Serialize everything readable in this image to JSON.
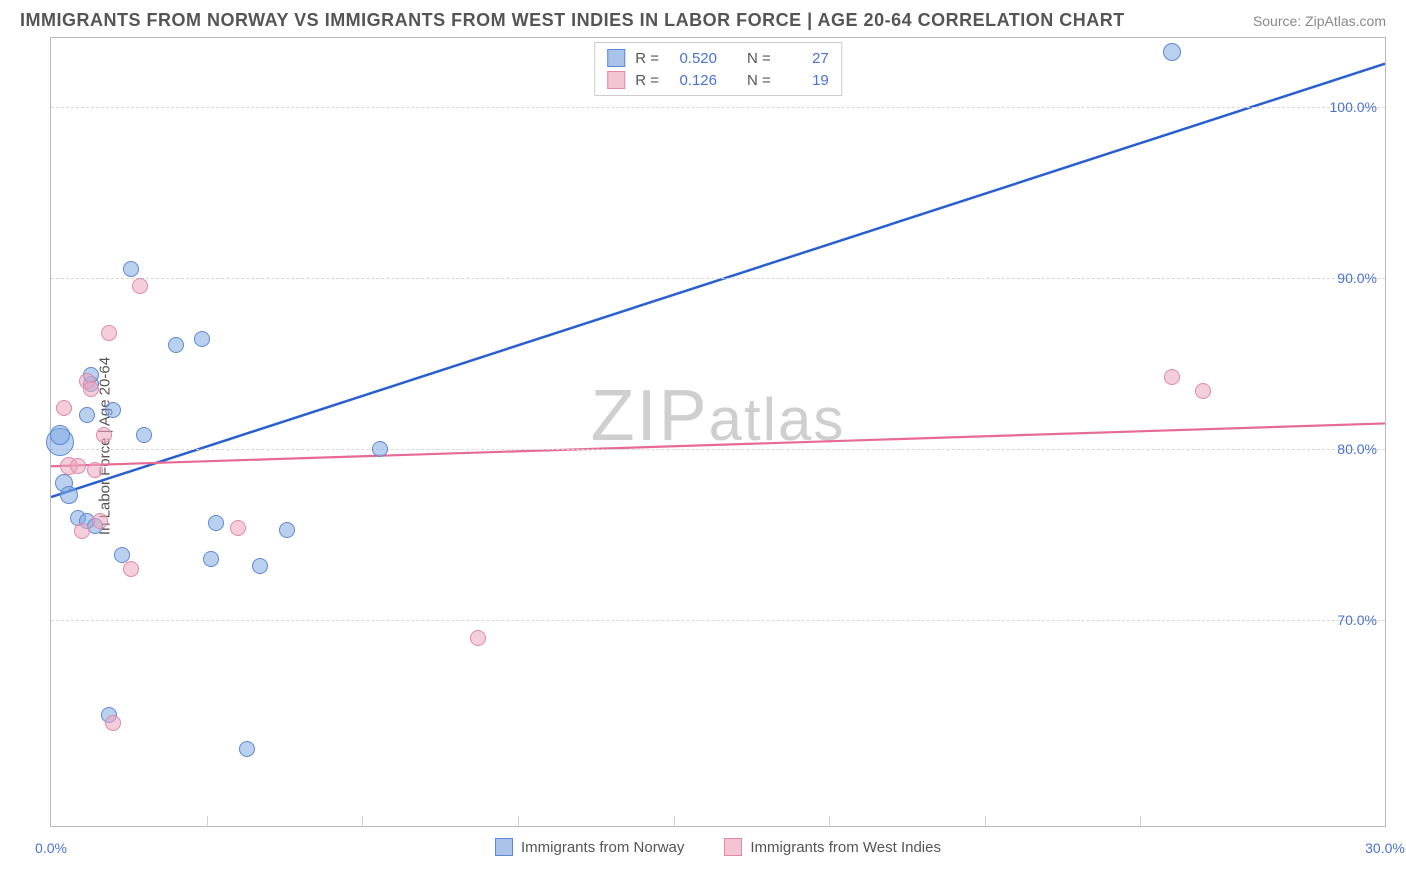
{
  "header": {
    "title": "IMMIGRANTS FROM NORWAY VS IMMIGRANTS FROM WEST INDIES IN LABOR FORCE | AGE 20-64 CORRELATION CHART",
    "source": "Source: ZipAtlas.com"
  },
  "chart": {
    "type": "scatter",
    "ylabel": "In Labor Force | Age 20-64",
    "xlim": [
      0,
      30
    ],
    "ylim": [
      58,
      104
    ],
    "ytick": [
      {
        "v": 70,
        "label": "70.0%"
      },
      {
        "v": 80,
        "label": "80.0%"
      },
      {
        "v": 90,
        "label": "90.0%"
      },
      {
        "v": 100,
        "label": "100.0%"
      }
    ],
    "xtick_minor": [
      3.5,
      7,
      10.5,
      14,
      17.5,
      21,
      24.5
    ],
    "xtick_labels": [
      {
        "v": 0,
        "label": "0.0%"
      },
      {
        "v": 30,
        "label": "30.0%"
      }
    ],
    "grid_color": "#d8d8d8",
    "background_color": "#ffffff",
    "watermark": "ZIPatlas",
    "legend_top": [
      {
        "swatch_fill": "#a9c3ea",
        "swatch_border": "#5d88d6",
        "r_label": "R =",
        "r": "0.520",
        "n_label": "N =",
        "n": "27"
      },
      {
        "swatch_fill": "#f3c4d2",
        "swatch_border": "#e389a6",
        "r_label": "R =",
        "r": "0.126",
        "n_label": "N =",
        "n": "19"
      }
    ],
    "legend_bottom": [
      {
        "swatch_fill": "#a9c3ea",
        "swatch_border": "#5d88d6",
        "label": "Immigrants from Norway"
      },
      {
        "swatch_fill": "#f3c4d2",
        "swatch_border": "#e389a6",
        "label": "Immigrants from West Indies"
      }
    ],
    "series": [
      {
        "name": "Immigrants from Norway",
        "fill": "rgba(130,170,225,0.55)",
        "border": "#5d88d6",
        "marker_radius": 8,
        "trend": {
          "x1": 0,
          "y1": 77.2,
          "x2": 30,
          "y2": 102.5,
          "color": "#2a5fd0",
          "width": 2.5
        },
        "points": [
          {
            "x": 0.2,
            "y": 80.4,
            "r": 14
          },
          {
            "x": 0.2,
            "y": 80.8,
            "r": 10
          },
          {
            "x": 0.3,
            "y": 78.0,
            "r": 9
          },
          {
            "x": 0.4,
            "y": 77.3,
            "r": 9
          },
          {
            "x": 0.6,
            "y": 76.0,
            "r": 8
          },
          {
            "x": 0.8,
            "y": 75.8,
            "r": 8
          },
          {
            "x": 0.8,
            "y": 82.0,
            "r": 8
          },
          {
            "x": 0.9,
            "y": 83.8,
            "r": 8
          },
          {
            "x": 0.9,
            "y": 84.3,
            "r": 8
          },
          {
            "x": 1.0,
            "y": 75.5,
            "r": 8
          },
          {
            "x": 1.3,
            "y": 64.5,
            "r": 8
          },
          {
            "x": 1.4,
            "y": 82.3,
            "r": 8
          },
          {
            "x": 1.6,
            "y": 73.8,
            "r": 8
          },
          {
            "x": 1.8,
            "y": 90.5,
            "r": 8
          },
          {
            "x": 2.1,
            "y": 80.8,
            "r": 8
          },
          {
            "x": 2.8,
            "y": 86.1,
            "r": 8
          },
          {
            "x": 3.4,
            "y": 86.4,
            "r": 8
          },
          {
            "x": 3.6,
            "y": 73.6,
            "r": 8
          },
          {
            "x": 3.7,
            "y": 75.7,
            "r": 8
          },
          {
            "x": 4.4,
            "y": 62.5,
            "r": 8
          },
          {
            "x": 4.7,
            "y": 73.2,
            "r": 8
          },
          {
            "x": 5.3,
            "y": 75.3,
            "r": 8
          },
          {
            "x": 7.4,
            "y": 80.0,
            "r": 8
          },
          {
            "x": 25.2,
            "y": 103.2,
            "r": 9
          }
        ]
      },
      {
        "name": "Immigrants from West Indies",
        "fill": "rgba(235,165,190,0.55)",
        "border": "#e389a6",
        "marker_radius": 8,
        "trend": {
          "x1": 0,
          "y1": 79.0,
          "x2": 30,
          "y2": 81.5,
          "color": "#e66a94",
          "width": 2.2
        },
        "points": [
          {
            "x": 0.3,
            "y": 82.4,
            "r": 8
          },
          {
            "x": 0.4,
            "y": 79.0,
            "r": 9
          },
          {
            "x": 0.6,
            "y": 79.0,
            "r": 8
          },
          {
            "x": 0.7,
            "y": 75.2,
            "r": 8
          },
          {
            "x": 0.8,
            "y": 84.0,
            "r": 8
          },
          {
            "x": 0.9,
            "y": 83.5,
            "r": 8
          },
          {
            "x": 1.0,
            "y": 78.8,
            "r": 8
          },
          {
            "x": 1.1,
            "y": 75.8,
            "r": 8
          },
          {
            "x": 1.2,
            "y": 80.8,
            "r": 8
          },
          {
            "x": 1.3,
            "y": 86.8,
            "r": 8
          },
          {
            "x": 1.4,
            "y": 64.0,
            "r": 8
          },
          {
            "x": 1.8,
            "y": 73.0,
            "r": 8
          },
          {
            "x": 2.0,
            "y": 89.5,
            "r": 8
          },
          {
            "x": 4.2,
            "y": 75.4,
            "r": 8
          },
          {
            "x": 9.6,
            "y": 69.0,
            "r": 8
          },
          {
            "x": 25.2,
            "y": 84.2,
            "r": 8
          },
          {
            "x": 25.9,
            "y": 83.4,
            "r": 8
          }
        ]
      }
    ]
  }
}
